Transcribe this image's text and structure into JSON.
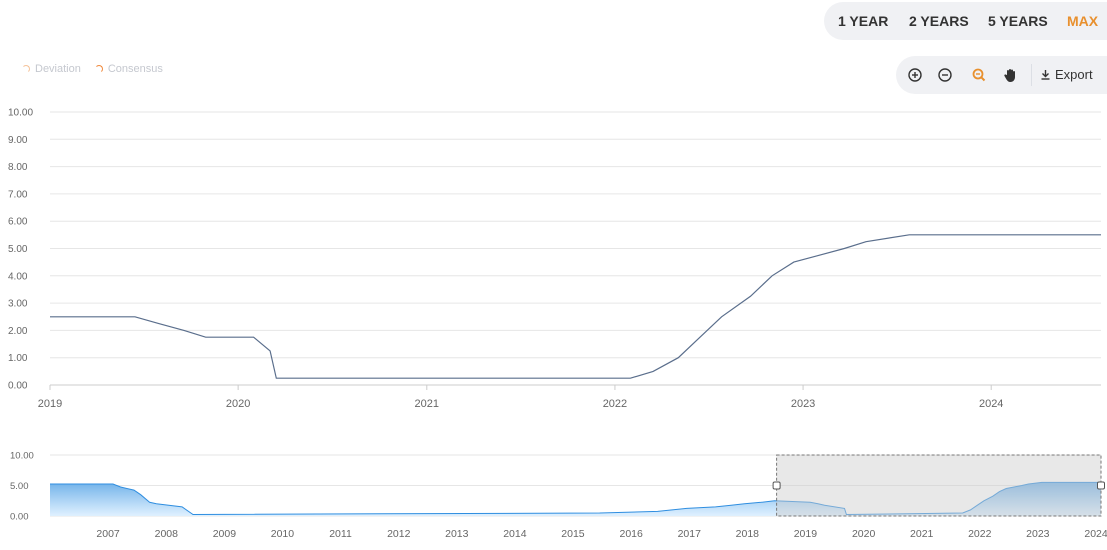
{
  "range_buttons": [
    "1 YEAR",
    "2 YEARS",
    "5 YEARS",
    "MAX"
  ],
  "active_range": "MAX",
  "legend": [
    {
      "label": "Deviation",
      "color": "#f5c39a"
    },
    {
      "label": "Consensus",
      "color": "#f08a3e"
    }
  ],
  "toolbar": {
    "icons": [
      "zoom-in-icon",
      "zoom-out-icon",
      "zoom-reset-icon",
      "pan-hand-icon"
    ],
    "export_label": "Export",
    "active_tool_color": "#e8902e"
  },
  "colors": {
    "line": "#5a6e8c",
    "navigator_fill": "#6aaee8",
    "navigator_line": "#2f8ee0",
    "grid": "#e6e6e6",
    "axis_text": "#666666",
    "selection": "#cccccc"
  },
  "chart_data": [
    {
      "type": "line",
      "title": "",
      "xlabel": "",
      "ylabel": "",
      "ylim": [
        0,
        10
      ],
      "xlim": [
        "2019-01-01",
        "2024-08-01"
      ],
      "yticks": [
        "0.00",
        "1.00",
        "2.00",
        "3.00",
        "4.00",
        "5.00",
        "6.00",
        "7.00",
        "8.00",
        "9.00",
        "10.00"
      ],
      "xticks": [
        "2019",
        "2020",
        "2021",
        "2022",
        "2023",
        "2024"
      ],
      "grid": true,
      "series": [
        {
          "x": [
            "2019-01-01",
            "2019-06-15",
            "2019-07-31",
            "2019-09-18",
            "2019-10-30",
            "2020-01-31",
            "2020-03-03",
            "2020-03-15",
            "2022-01-31",
            "2022-03-16",
            "2022-05-04",
            "2022-06-15",
            "2022-07-27",
            "2022-09-21",
            "2022-11-02",
            "2022-12-14",
            "2023-02-01",
            "2023-03-22",
            "2023-05-03",
            "2023-07-26",
            "2024-08-01"
          ],
          "y": [
            2.5,
            2.5,
            2.25,
            2.0,
            1.75,
            1.75,
            1.25,
            0.25,
            0.25,
            0.5,
            1.0,
            1.75,
            2.5,
            3.25,
            4.0,
            4.5,
            4.75,
            5.0,
            5.25,
            5.5,
            5.5
          ]
        }
      ]
    },
    {
      "type": "area",
      "title": "",
      "xlim": [
        "2006-07-01",
        "2024-08-01"
      ],
      "ylim": [
        0,
        10
      ],
      "yticks": [
        "0.00",
        "5.00",
        "10.00"
      ],
      "xticks": [
        "2007",
        "2008",
        "2009",
        "2010",
        "2011",
        "2012",
        "2013",
        "2014",
        "2015",
        "2016",
        "2017",
        "2018",
        "2019",
        "2020",
        "2021",
        "2022",
        "2023",
        "2024"
      ],
      "selected_range": [
        "2019-01-01",
        "2024-08-01"
      ],
      "series": [
        {
          "x": [
            "2006-07-01",
            "2007-08-01",
            "2007-09-18",
            "2007-12-11",
            "2008-01-22",
            "2008-03-18",
            "2008-04-30",
            "2008-10-08",
            "2008-12-16",
            "2015-12-16",
            "2016-12-14",
            "2017-03-15",
            "2017-06-14",
            "2017-12-13",
            "2018-03-21",
            "2018-06-13",
            "2018-09-26",
            "2018-12-19",
            "2019-07-31",
            "2019-09-18",
            "2019-10-30",
            "2020-03-03",
            "2020-03-15",
            "2022-03-16",
            "2022-05-04",
            "2022-06-15",
            "2022-07-27",
            "2022-09-21",
            "2022-11-02",
            "2022-12-14",
            "2023-02-01",
            "2023-03-22",
            "2023-05-03",
            "2023-07-26",
            "2024-08-01"
          ],
          "y": [
            5.25,
            5.25,
            4.75,
            4.25,
            3.5,
            2.25,
            2.0,
            1.5,
            0.25,
            0.5,
            0.75,
            1.0,
            1.25,
            1.5,
            1.75,
            2.0,
            2.25,
            2.5,
            2.25,
            2.0,
            1.75,
            1.25,
            0.25,
            0.5,
            1.0,
            1.75,
            2.5,
            3.25,
            4.0,
            4.5,
            4.75,
            5.0,
            5.25,
            5.5,
            5.5
          ]
        }
      ]
    }
  ]
}
